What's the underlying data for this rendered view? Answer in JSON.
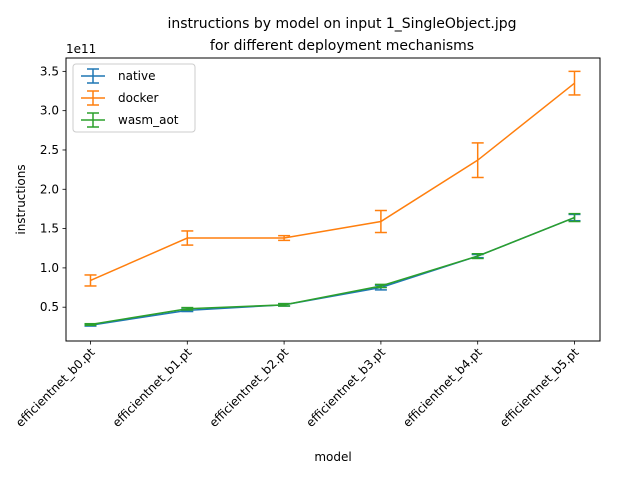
{
  "chart_data": {
    "type": "line",
    "title_line1": "instructions by model on input 1_SingleObject.jpg",
    "title_line2": "for different deployment mechanisms",
    "xlabel": "model",
    "ylabel": "instructions",
    "y_offset_label": "1e11",
    "y_scale": 100000000000,
    "categories": [
      "efficientnet_b0.pt",
      "efficientnet_b1.pt",
      "efficientnet_b2.pt",
      "efficientnet_b3.pt",
      "efficientnet_b4.pt",
      "efficientnet_b5.pt"
    ],
    "ylim": [
      0.07,
      3.67
    ],
    "yticks": [
      0.5,
      1.0,
      1.5,
      2.0,
      2.5,
      3.0,
      3.5
    ],
    "ytick_labels": [
      "0.5",
      "1.0",
      "1.5",
      "2.0",
      "2.5",
      "3.0",
      "3.5"
    ],
    "legend_position": "top-left",
    "grid": false,
    "series": [
      {
        "name": "native",
        "color": "#1f77b4",
        "values": [
          0.27,
          0.46,
          0.53,
          0.75,
          1.15,
          1.64
        ],
        "err": [
          0.01,
          0.015,
          0.015,
          0.03,
          0.02,
          0.04
        ]
      },
      {
        "name": "docker",
        "color": "#ff7f0e",
        "values": [
          0.84,
          1.38,
          1.38,
          1.59,
          2.37,
          3.35
        ],
        "err": [
          0.07,
          0.09,
          0.03,
          0.14,
          0.22,
          0.15
        ]
      },
      {
        "name": "wasm_aot",
        "color": "#2ca02c",
        "values": [
          0.28,
          0.48,
          0.53,
          0.77,
          1.15,
          1.64
        ],
        "err": [
          0.01,
          0.015,
          0.015,
          0.02,
          0.03,
          0.05
        ]
      }
    ]
  }
}
